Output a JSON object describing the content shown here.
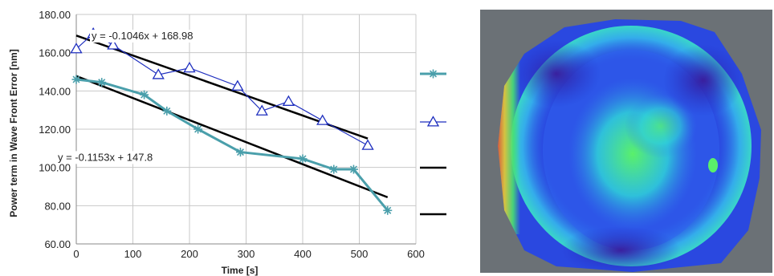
{
  "chart_data": {
    "type": "line",
    "xlabel": "Time [s]",
    "ylabel": "Power term in Wave Front Error  [nm]",
    "xlim": [
      0,
      600
    ],
    "ylim": [
      60,
      180
    ],
    "x_ticks": [
      0,
      100,
      200,
      300,
      400,
      500,
      600
    ],
    "y_ticks": [
      60,
      80,
      100,
      120,
      140,
      160,
      180
    ],
    "x_tick_labels": [
      "0",
      "100",
      "200",
      "300",
      "400",
      "500",
      "600"
    ],
    "y_tick_labels": [
      "60.00",
      "80.00",
      "100.00",
      "120.00",
      "140.00",
      "160.00",
      "180.00"
    ],
    "grid": true,
    "legend_position": "right",
    "series": [
      {
        "marker": "asterisk",
        "color": "#4a9fab",
        "x": [
          0,
          45,
          120,
          160,
          215,
          290,
          400,
          455,
          490,
          550
        ],
        "y": [
          146,
          144.5,
          138,
          129.5,
          120,
          108,
          104.5,
          99,
          99,
          77.5
        ]
      },
      {
        "marker": "triangle",
        "color": "#1f2fbf",
        "x": [
          0,
          30,
          65,
          145,
          200,
          285,
          328,
          375,
          435,
          515
        ],
        "y": [
          162,
          170,
          164,
          148.5,
          152,
          142.5,
          129.5,
          134.5,
          124.5,
          111.5
        ]
      }
    ],
    "trendlines": [
      {
        "slope": -0.1046,
        "intercept": 168.98,
        "x_range": [
          0,
          515
        ],
        "equation": "y = -0.1046x + 168.98",
        "color": "#000000"
      },
      {
        "slope": -0.1153,
        "intercept": 147.8,
        "x_range": [
          0,
          550
        ],
        "equation": "y = -0.1153x + 147.8",
        "color": "#000000"
      }
    ]
  },
  "wavefront_map": {
    "background_color": "#6b7176",
    "colors": [
      "#1e2bd6",
      "#2f62f0",
      "#2fd0e0",
      "#3ee07a",
      "#3a1fa0",
      "#e8302a"
    ]
  }
}
